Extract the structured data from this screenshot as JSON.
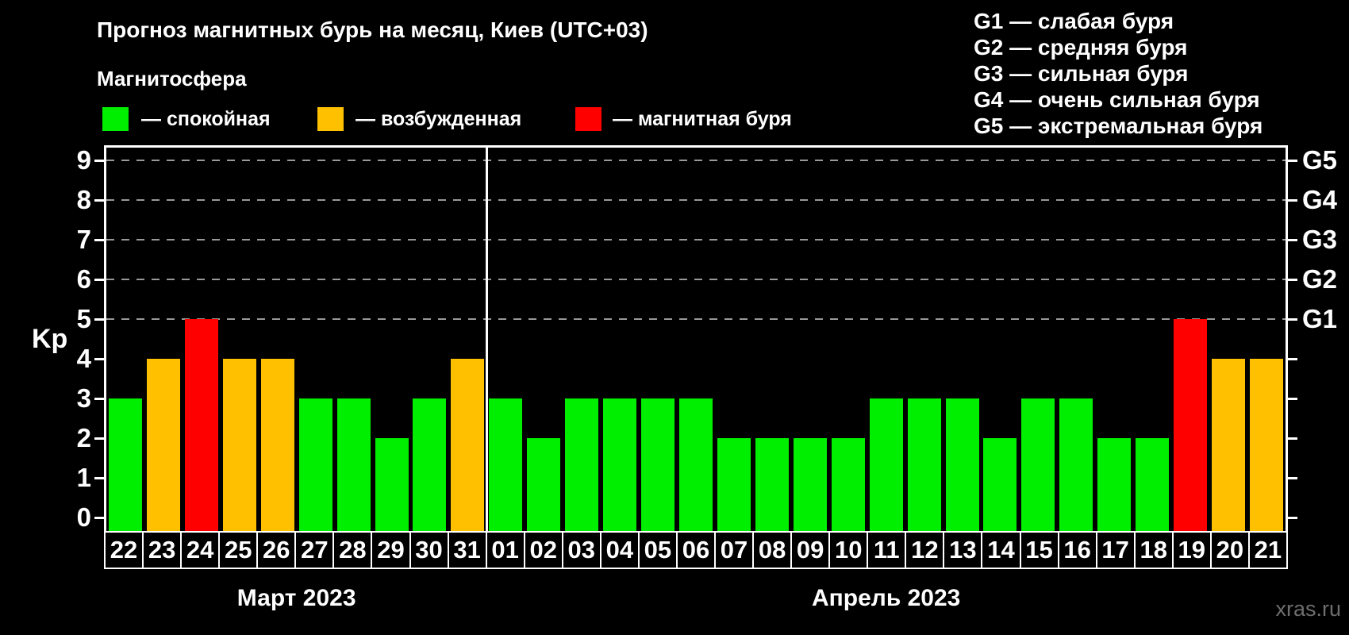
{
  "page": {
    "title": "Прогноз магнитных бурь на месяц, Киев (UTC+03)",
    "subtitle": "Магнитосфера",
    "watermark": "xras.ru"
  },
  "legend": {
    "items": [
      {
        "status": "quiet",
        "label": "— спокойная"
      },
      {
        "status": "excited",
        "label": "— возбужденная"
      },
      {
        "status": "storm",
        "label": "— магнитная буря"
      }
    ]
  },
  "g_legend": {
    "items": [
      "G1 — слабая буря",
      "G2 — средняя буря",
      "G3 — сильная буря",
      "G4 — очень сильная буря",
      "G5 — экстремальная буря"
    ]
  },
  "colors": {
    "quiet": "#00ee00",
    "excited": "#ffc000",
    "storm": "#ff0000",
    "background": "#000000",
    "axis": "#ffffff",
    "gridline": "#999999",
    "watermark": "#6e6e6e"
  },
  "chart_data": {
    "type": "bar",
    "ylabel": "Kp",
    "ylim": [
      0,
      9
    ],
    "y_ticks": [
      0,
      1,
      2,
      3,
      4,
      5,
      6,
      7,
      8,
      9
    ],
    "gridline_levels": [
      5,
      6,
      7,
      8,
      9
    ],
    "right_axis": [
      {
        "level": 5,
        "label": "G1"
      },
      {
        "level": 6,
        "label": "G2"
      },
      {
        "level": 7,
        "label": "G3"
      },
      {
        "level": 8,
        "label": "G4"
      },
      {
        "level": 9,
        "label": "G5"
      }
    ],
    "groups": [
      {
        "label": "Март 2023",
        "days": [
          "22",
          "23",
          "24",
          "25",
          "26",
          "27",
          "28",
          "29",
          "30",
          "31"
        ],
        "values": [
          3,
          4,
          5,
          4,
          4,
          3,
          3,
          2,
          3,
          4
        ],
        "statuses": [
          "quiet",
          "excited",
          "storm",
          "excited",
          "excited",
          "quiet",
          "quiet",
          "quiet",
          "quiet",
          "excited"
        ]
      },
      {
        "label": "Апрель 2023",
        "days": [
          "01",
          "02",
          "03",
          "04",
          "05",
          "06",
          "07",
          "08",
          "09",
          "10",
          "11",
          "12",
          "13",
          "14",
          "15",
          "16",
          "17",
          "18",
          "19",
          "20",
          "21"
        ],
        "values": [
          3,
          2,
          3,
          3,
          3,
          3,
          2,
          2,
          2,
          2,
          3,
          3,
          3,
          2,
          3,
          3,
          2,
          2,
          5,
          4,
          4
        ],
        "statuses": [
          "quiet",
          "quiet",
          "quiet",
          "quiet",
          "quiet",
          "quiet",
          "quiet",
          "quiet",
          "quiet",
          "quiet",
          "quiet",
          "quiet",
          "quiet",
          "quiet",
          "quiet",
          "quiet",
          "quiet",
          "quiet",
          "storm",
          "excited",
          "excited"
        ]
      }
    ]
  }
}
